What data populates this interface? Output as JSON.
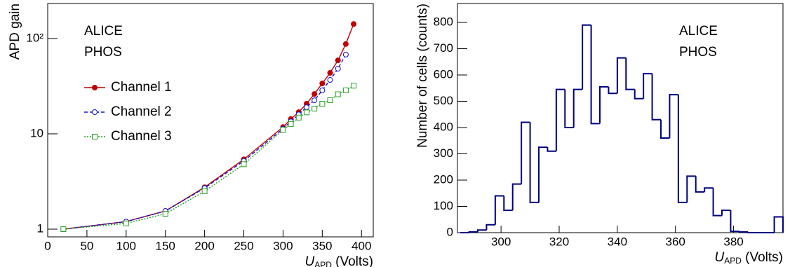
{
  "chart_data": [
    {
      "type": "line",
      "log_y": true,
      "legend": "upper left",
      "annotations": [
        "ALICE",
        "PHOS"
      ],
      "ylabel": "APD gain",
      "xlabel": {
        "symbol": "U",
        "subscript": "APD",
        "unit": "(Volts)"
      },
      "x": [
        20,
        100,
        150,
        200,
        250,
        300,
        310,
        320,
        330,
        340,
        350,
        360,
        370,
        380,
        390
      ],
      "series": [
        {
          "name": "Channel 1",
          "color": "#c00000",
          "marker": "filled-circle",
          "dash": "solid",
          "values": [
            1.0,
            1.2,
            1.55,
            2.75,
            5.4,
            11.8,
            14.3,
            16.9,
            20.7,
            26.2,
            33.8,
            43.6,
            59,
            87.6,
            142
          ]
        },
        {
          "name": "Channel 2",
          "color": "#1010d0",
          "marker": "open-circle",
          "dash": "dashed",
          "values": [
            1.0,
            1.2,
            1.55,
            2.7,
            5.2,
            11.3,
            13.5,
            16,
            19,
            22.5,
            28.6,
            36.8,
            48.3,
            67.8,
            null
          ]
        },
        {
          "name": "Channel 3",
          "color": "#22a022",
          "marker": "open-square",
          "dash": "dotted",
          "values": [
            1.0,
            1.15,
            1.45,
            2.5,
            4.8,
            11.0,
            12.7,
            14.8,
            16.8,
            18.4,
            20.7,
            22.5,
            26,
            28.6,
            32
          ]
        }
      ],
      "xlim": [
        0,
        415
      ],
      "ylim": [
        0.83,
        233
      ],
      "xticks": [
        0,
        50,
        100,
        150,
        200,
        250,
        300,
        350,
        400
      ],
      "yticks": [
        1,
        10,
        {
          "value": 100,
          "label": "10²"
        }
      ]
    },
    {
      "type": "histogram",
      "color": "#000080",
      "annotations": [
        "ALICE",
        "PHOS"
      ],
      "ylabel": "Number of cells (counts)",
      "xlabel": {
        "symbol": "U",
        "subscript": "APD",
        "unit": "(Volts)"
      },
      "bins": [
        286,
        289,
        292,
        295,
        298,
        301,
        304,
        307,
        310,
        313,
        316,
        319,
        322,
        325,
        328,
        331,
        334,
        337,
        340,
        343,
        346,
        349,
        352,
        355,
        358,
        361,
        364,
        367,
        370,
        373,
        376,
        379,
        382,
        385,
        388,
        391,
        394,
        397
      ],
      "counts": [
        0,
        3,
        10,
        30,
        140,
        85,
        185,
        420,
        115,
        325,
        310,
        545,
        400,
        545,
        790,
        415,
        555,
        530,
        665,
        545,
        510,
        605,
        430,
        360,
        525,
        115,
        215,
        155,
        170,
        65,
        85,
        5,
        3,
        0,
        0,
        0,
        60
      ],
      "xlim": [
        285,
        397
      ],
      "ylim": [
        0,
        872
      ],
      "xticks": [
        300,
        320,
        340,
        360,
        380
      ],
      "yticks": [
        0,
        100,
        200,
        300,
        400,
        500,
        600,
        700,
        800
      ]
    }
  ]
}
